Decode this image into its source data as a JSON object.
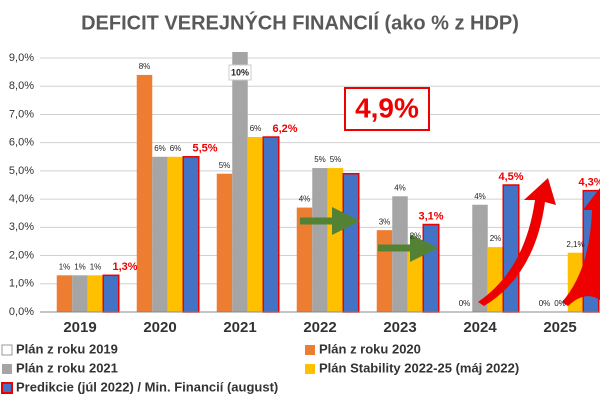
{
  "chart_data": {
    "type": "bar",
    "title": "DEFICIT VEREJNÝCH FINANCIÍ (ako % z HDP)",
    "categories": [
      "2019",
      "2020",
      "2021",
      "2022",
      "2023",
      "2024",
      "2025"
    ],
    "series": [
      {
        "name": "Plán z roku 2019",
        "color": "#ffffff",
        "values": [
          null,
          null,
          null,
          null,
          null,
          null,
          null
        ]
      },
      {
        "name": "Plán z roku 2020",
        "color": "#ed7d31",
        "values": [
          1.3,
          8.4,
          4.9,
          3.7,
          2.9,
          0,
          0
        ],
        "value_labels": [
          "1%",
          "8%",
          "5%",
          "4%",
          "3%",
          "0%",
          "0%"
        ]
      },
      {
        "name": "Plán z roku 2021",
        "color": "#a5a5a5",
        "values": [
          1.3,
          5.5,
          9.9,
          5.1,
          4.1,
          3.8,
          0
        ],
        "value_labels": [
          "1%",
          "6%",
          "10%",
          "5%",
          "4%",
          "4%",
          "0%"
        ]
      },
      {
        "name": "Plán Stability 2022-25 (máj 2022)",
        "color": "#ffc000",
        "values": [
          1.3,
          5.5,
          6.2,
          5.1,
          2.4,
          2.3,
          2.1
        ],
        "value_labels": [
          "1%",
          "6%",
          "6%",
          "5%",
          "2%",
          "2%",
          "2,1%"
        ]
      },
      {
        "name": "Predikcie (júl 2022) / Min. Financií (august)",
        "color": "#4472c4",
        "values": [
          1.3,
          5.5,
          6.2,
          4.9,
          3.1,
          4.5,
          4.3
        ],
        "value_labels": [
          "1,3%",
          "5,5%",
          "6,2%",
          "4,9%",
          "3,1%",
          "4,5%",
          "4,3%"
        ]
      }
    ],
    "ylim": [
      0,
      9
    ],
    "yticks": [
      {
        "value": 0,
        "label": "0,0%"
      },
      {
        "value": 1,
        "label": "1,0%"
      },
      {
        "value": 2,
        "label": "2,0%"
      },
      {
        "value": 3,
        "label": "3,0%"
      },
      {
        "value": 4,
        "label": "4,0%"
      },
      {
        "value": 5,
        "label": "5,0%"
      },
      {
        "value": 6,
        "label": "6,0%"
      },
      {
        "value": 7,
        "label": "7,0%"
      },
      {
        "value": 8,
        "label": "8,0%"
      },
      {
        "value": 9,
        "label": "9,0%"
      }
    ],
    "grid": true,
    "legend": "bottom"
  }
}
